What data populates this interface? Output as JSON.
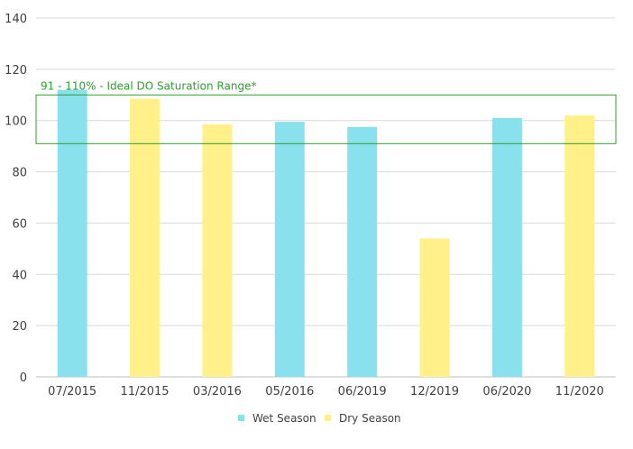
{
  "chart_data": {
    "type": "bar",
    "categories": [
      "07/2015",
      "11/2015",
      "03/2016",
      "05/2016",
      "06/2019",
      "12/2019",
      "06/2020",
      "11/2020"
    ],
    "values": [
      112,
      108.5,
      98.5,
      99.5,
      97.5,
      54,
      101,
      102
    ],
    "season": [
      "Wet Season",
      "Dry Season",
      "Dry Season",
      "Wet Season",
      "Wet Season",
      "Dry Season",
      "Wet Season",
      "Dry Season"
    ],
    "legend": [
      {
        "name": "Wet Season",
        "color": "#8ae1ee"
      },
      {
        "name": "Dry Season",
        "color": "#fff08a"
      }
    ],
    "ylim": [
      0,
      140
    ],
    "yticks": [
      0,
      20,
      40,
      60,
      80,
      100,
      120,
      140
    ],
    "grid": true,
    "legend_position": "bottom",
    "annotation": {
      "text": "91 - 110% - Ideal DO Saturation Range*",
      "range": [
        91,
        110
      ],
      "color": "#2ca02c"
    }
  }
}
